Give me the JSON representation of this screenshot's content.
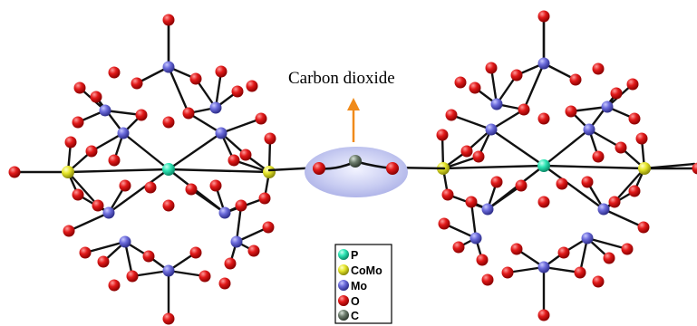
{
  "label": "Carbon dioxide",
  "colors": {
    "P": "#2ee6b5",
    "CoMo": "#e6e62a",
    "Mo": "#6b6bdb",
    "O": "#e21a1a",
    "C": "#6f7f6f",
    "arrow": "#f08a1a",
    "ellipse": "#c9cdf2",
    "bond": "#111111"
  },
  "legend": [
    {
      "symbol": "P",
      "key": "P"
    },
    {
      "symbol": "CoMo",
      "key": "CoMo"
    },
    {
      "symbol": "Mo",
      "key": "Mo"
    },
    {
      "symbol": "O",
      "key": "O"
    },
    {
      "symbol": "C",
      "key": "C"
    }
  ]
}
